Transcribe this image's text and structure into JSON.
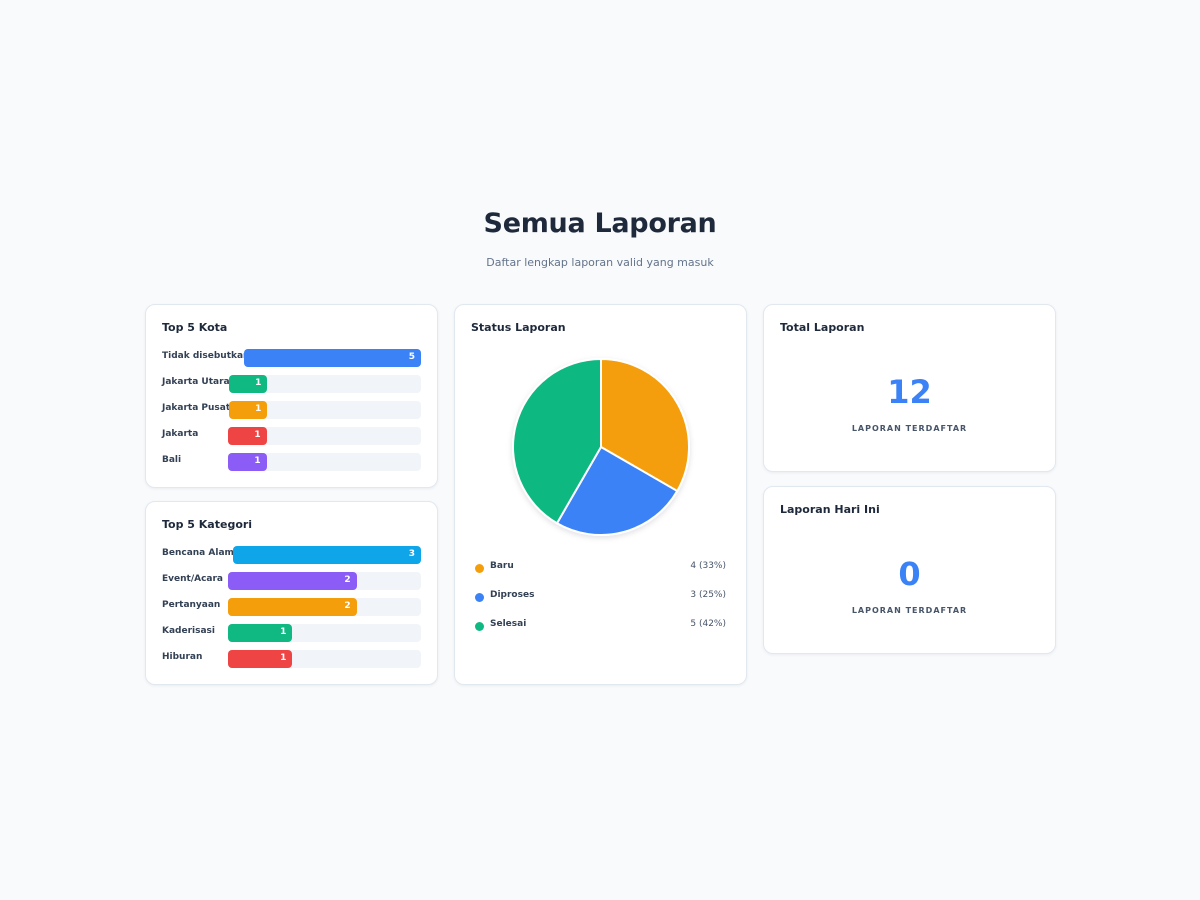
{
  "header": {
    "title": "Semua Laporan",
    "subtitle": "Daftar lengkap laporan valid yang masuk"
  },
  "top_kota": {
    "title": "Top 5 Kota",
    "max": 5,
    "items": [
      {
        "label": "Tidak disebutkan",
        "value": 5,
        "color": "#3b82f6"
      },
      {
        "label": "Jakarta Utara",
        "value": 1,
        "color": "#10b981"
      },
      {
        "label": "Jakarta Pusat",
        "value": 1,
        "color": "#f59e0b"
      },
      {
        "label": "Jakarta",
        "value": 1,
        "color": "#ef4444"
      },
      {
        "label": "Bali",
        "value": 1,
        "color": "#8b5cf6"
      }
    ]
  },
  "top_kategori": {
    "title": "Top 5 Kategori",
    "max": 3,
    "items": [
      {
        "label": "Bencana Alam",
        "value": 3,
        "color": "#0ea5e9"
      },
      {
        "label": "Event/Acara",
        "value": 2,
        "color": "#8b5cf6"
      },
      {
        "label": "Pertanyaan",
        "value": 2,
        "color": "#f59e0b"
      },
      {
        "label": "Kaderisasi",
        "value": 1,
        "color": "#10b981"
      },
      {
        "label": "Hiburan",
        "value": 1,
        "color": "#ef4444"
      }
    ]
  },
  "status": {
    "title": "Status Laporan",
    "legend": [
      {
        "label": "Baru",
        "display": "4 (33%)",
        "color": "#f59e0b"
      },
      {
        "label": "Diproses",
        "display": "3 (25%)",
        "color": "#3b82f6"
      },
      {
        "label": "Selesai",
        "display": "5 (42%)",
        "color": "#10b981"
      }
    ]
  },
  "chart_data": {
    "type": "pie",
    "title": "Status Laporan",
    "labels": [
      "Baru",
      "Diproses",
      "Selesai"
    ],
    "values": [
      4,
      3,
      5
    ],
    "colors": [
      "#f59e0b",
      "#3b82f6",
      "#10b981"
    ],
    "legend": "bottom"
  },
  "total_laporan": {
    "title": "Total Laporan",
    "value": "12",
    "caption": "LAPORAN TERDAFTAR"
  },
  "laporan_hari_ini": {
    "title": "Laporan Hari Ini",
    "value": "0",
    "caption": "LAPORAN TERDAFTAR"
  }
}
